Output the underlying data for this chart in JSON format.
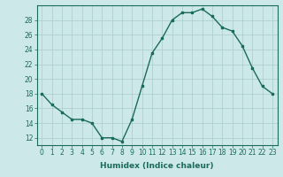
{
  "x": [
    0,
    1,
    2,
    3,
    4,
    5,
    6,
    7,
    8,
    9,
    10,
    11,
    12,
    13,
    14,
    15,
    16,
    17,
    18,
    19,
    20,
    21,
    22,
    23
  ],
  "y": [
    18,
    16.5,
    15.5,
    14.5,
    14.5,
    14,
    12,
    12,
    11.5,
    14.5,
    19,
    23.5,
    25.5,
    28,
    29,
    29,
    29.5,
    28.5,
    27,
    26.5,
    24.5,
    21.5,
    19,
    18
  ],
  "line_color": "#1a6b5a",
  "marker": "s",
  "markersize": 2.0,
  "linewidth": 1.0,
  "xlabel": "Humidex (Indice chaleur)",
  "xlabel_fontsize": 6.5,
  "xlim": [
    -0.5,
    23.5
  ],
  "ylim": [
    11,
    30
  ],
  "yticks": [
    12,
    14,
    16,
    18,
    20,
    22,
    24,
    26,
    28
  ],
  "xticks": [
    0,
    1,
    2,
    3,
    4,
    5,
    6,
    7,
    8,
    9,
    10,
    11,
    12,
    13,
    14,
    15,
    16,
    17,
    18,
    19,
    20,
    21,
    22,
    23
  ],
  "tick_fontsize": 5.5,
  "bg_color": "#cce8e8",
  "grid_color": "#aacccc",
  "axes_color": "#1a6b5a"
}
